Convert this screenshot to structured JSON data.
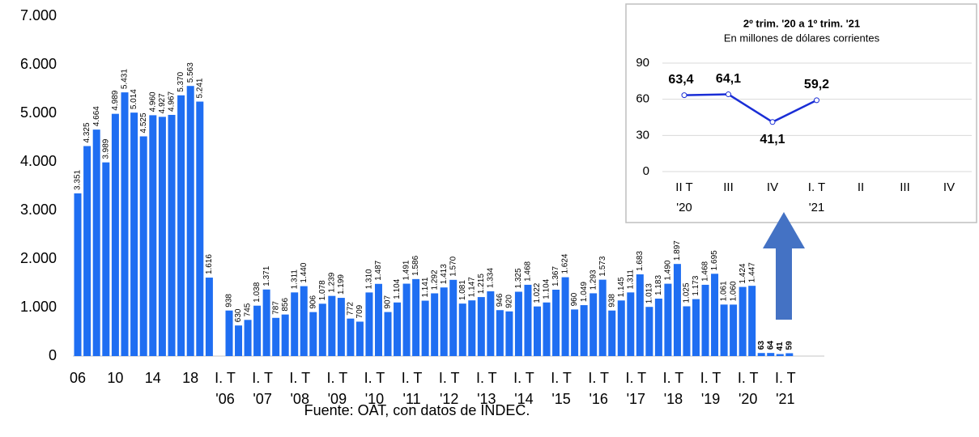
{
  "chart_data": [
    {
      "type": "bar",
      "categories": [
        "06",
        null,
        null,
        null,
        "10",
        null,
        null,
        null,
        "14",
        null,
        null,
        null,
        "18",
        null,
        null,
        [
          "I. T",
          "'06"
        ],
        null,
        null,
        null,
        [
          "I. T",
          "'07"
        ],
        null,
        null,
        null,
        [
          "I. T",
          "'08"
        ],
        null,
        null,
        null,
        [
          "I. T",
          "'09"
        ],
        null,
        null,
        null,
        [
          "I. T",
          "'10"
        ],
        null,
        null,
        null,
        [
          "I. T",
          "'11"
        ],
        null,
        null,
        null,
        [
          "I. T",
          "'12"
        ],
        null,
        null,
        null,
        [
          "I. T",
          "'13"
        ],
        null,
        null,
        null,
        [
          "I. T",
          "'14"
        ],
        null,
        null,
        null,
        [
          "I. T",
          "'15"
        ],
        null,
        null,
        null,
        [
          "I. T",
          "'16"
        ],
        null,
        null,
        null,
        [
          "I. T",
          "'17"
        ],
        null,
        null,
        null,
        [
          "I. T",
          "'18"
        ],
        null,
        null,
        null,
        [
          "I. T",
          "'19"
        ],
        null,
        null,
        null,
        [
          "I. T",
          "'20"
        ],
        null,
        null,
        null,
        [
          "I. T",
          "'21"
        ]
      ],
      "values": [
        3351,
        4325,
        4664,
        3989,
        4989,
        5431,
        5014,
        4525,
        4960,
        4927,
        4967,
        5370,
        5563,
        5241,
        1616,
        938,
        630,
        745,
        1038,
        1371,
        787,
        856,
        1311,
        1440,
        906,
        1078,
        1239,
        1199,
        772,
        709,
        1310,
        1487,
        907,
        1104,
        1491,
        1586,
        1141,
        1292,
        1413,
        1570,
        1081,
        1147,
        1215,
        1334,
        946,
        920,
        1325,
        1468,
        1022,
        1104,
        1367,
        1624,
        960,
        1049,
        1293,
        1573,
        938,
        1145,
        1311,
        1683,
        1013,
        1183,
        1490,
        1897,
        1025,
        1173,
        1468,
        1695,
        1061,
        1060,
        1424,
        1447,
        63,
        64,
        41,
        59
      ],
      "value_labels": [
        "3.351",
        "4.325",
        "4.664",
        "3.989",
        "4.989",
        "5.431",
        "5.014",
        "4.525",
        "4.960",
        "4.927",
        "4.967",
        "5.370",
        "5.563",
        "5.241",
        "1.616",
        "938",
        "630",
        "745",
        "1.038",
        "1.371",
        "787",
        "856",
        "1.311",
        "1.440",
        "906",
        "1.078",
        "1.239",
        "1.199",
        "772",
        "709",
        "1.310",
        "1.487",
        "907",
        "1.104",
        "1.491",
        "1.586",
        "1.141",
        "1.292",
        "1.413",
        "1.570",
        "1.081",
        "1.147",
        "1.215",
        "1.334",
        "946",
        "920",
        "1.325",
        "1.468",
        "1.022",
        "1.104",
        "1.367",
        "1.624",
        "960",
        "1.049",
        "1.293",
        "1.573",
        "938",
        "1.145",
        "1.311",
        "1.683",
        "1.013",
        "1.183",
        "1.490",
        "1.897",
        "1.025",
        "1.173",
        "1.468",
        "1.695",
        "1.061",
        "1.060",
        "1.424",
        "1.447",
        "63",
        "64",
        "41",
        "59"
      ],
      "color": "#1f6ef2",
      "ylim": [
        0,
        7000
      ],
      "yticks": [
        0,
        {
          "value": 1000,
          "label": "1.000"
        },
        {
          "value": 2000,
          "label": "2.000"
        },
        {
          "value": 3000,
          "label": "3.000"
        },
        {
          "value": 4000,
          "label": "4.000"
        },
        {
          "value": 5000,
          "label": "5.000"
        },
        {
          "value": 6000,
          "label": "6.000"
        },
        {
          "value": 7000,
          "label": "7.000"
        }
      ],
      "source": "Fuente: OAT, con datos de INDEC."
    },
    {
      "type": "line",
      "title": "2º trim. '20 a 1º trim. '21",
      "subtitle": "En millones de dólares corrientes",
      "categories": [
        [
          "II T",
          "'20"
        ],
        "III",
        "IV",
        [
          "I. T",
          "'21"
        ],
        "II",
        "III",
        "IV"
      ],
      "values": [
        63.4,
        64.1,
        41.1,
        59.2,
        null,
        null,
        null
      ],
      "value_labels": [
        "63,4",
        "64,1",
        "41,1",
        "59,2",
        null,
        null,
        null
      ],
      "color": "#1a2ed6",
      "ylim": [
        0,
        90
      ],
      "yticks": [
        0,
        30,
        60,
        90
      ],
      "grid": true
    }
  ]
}
